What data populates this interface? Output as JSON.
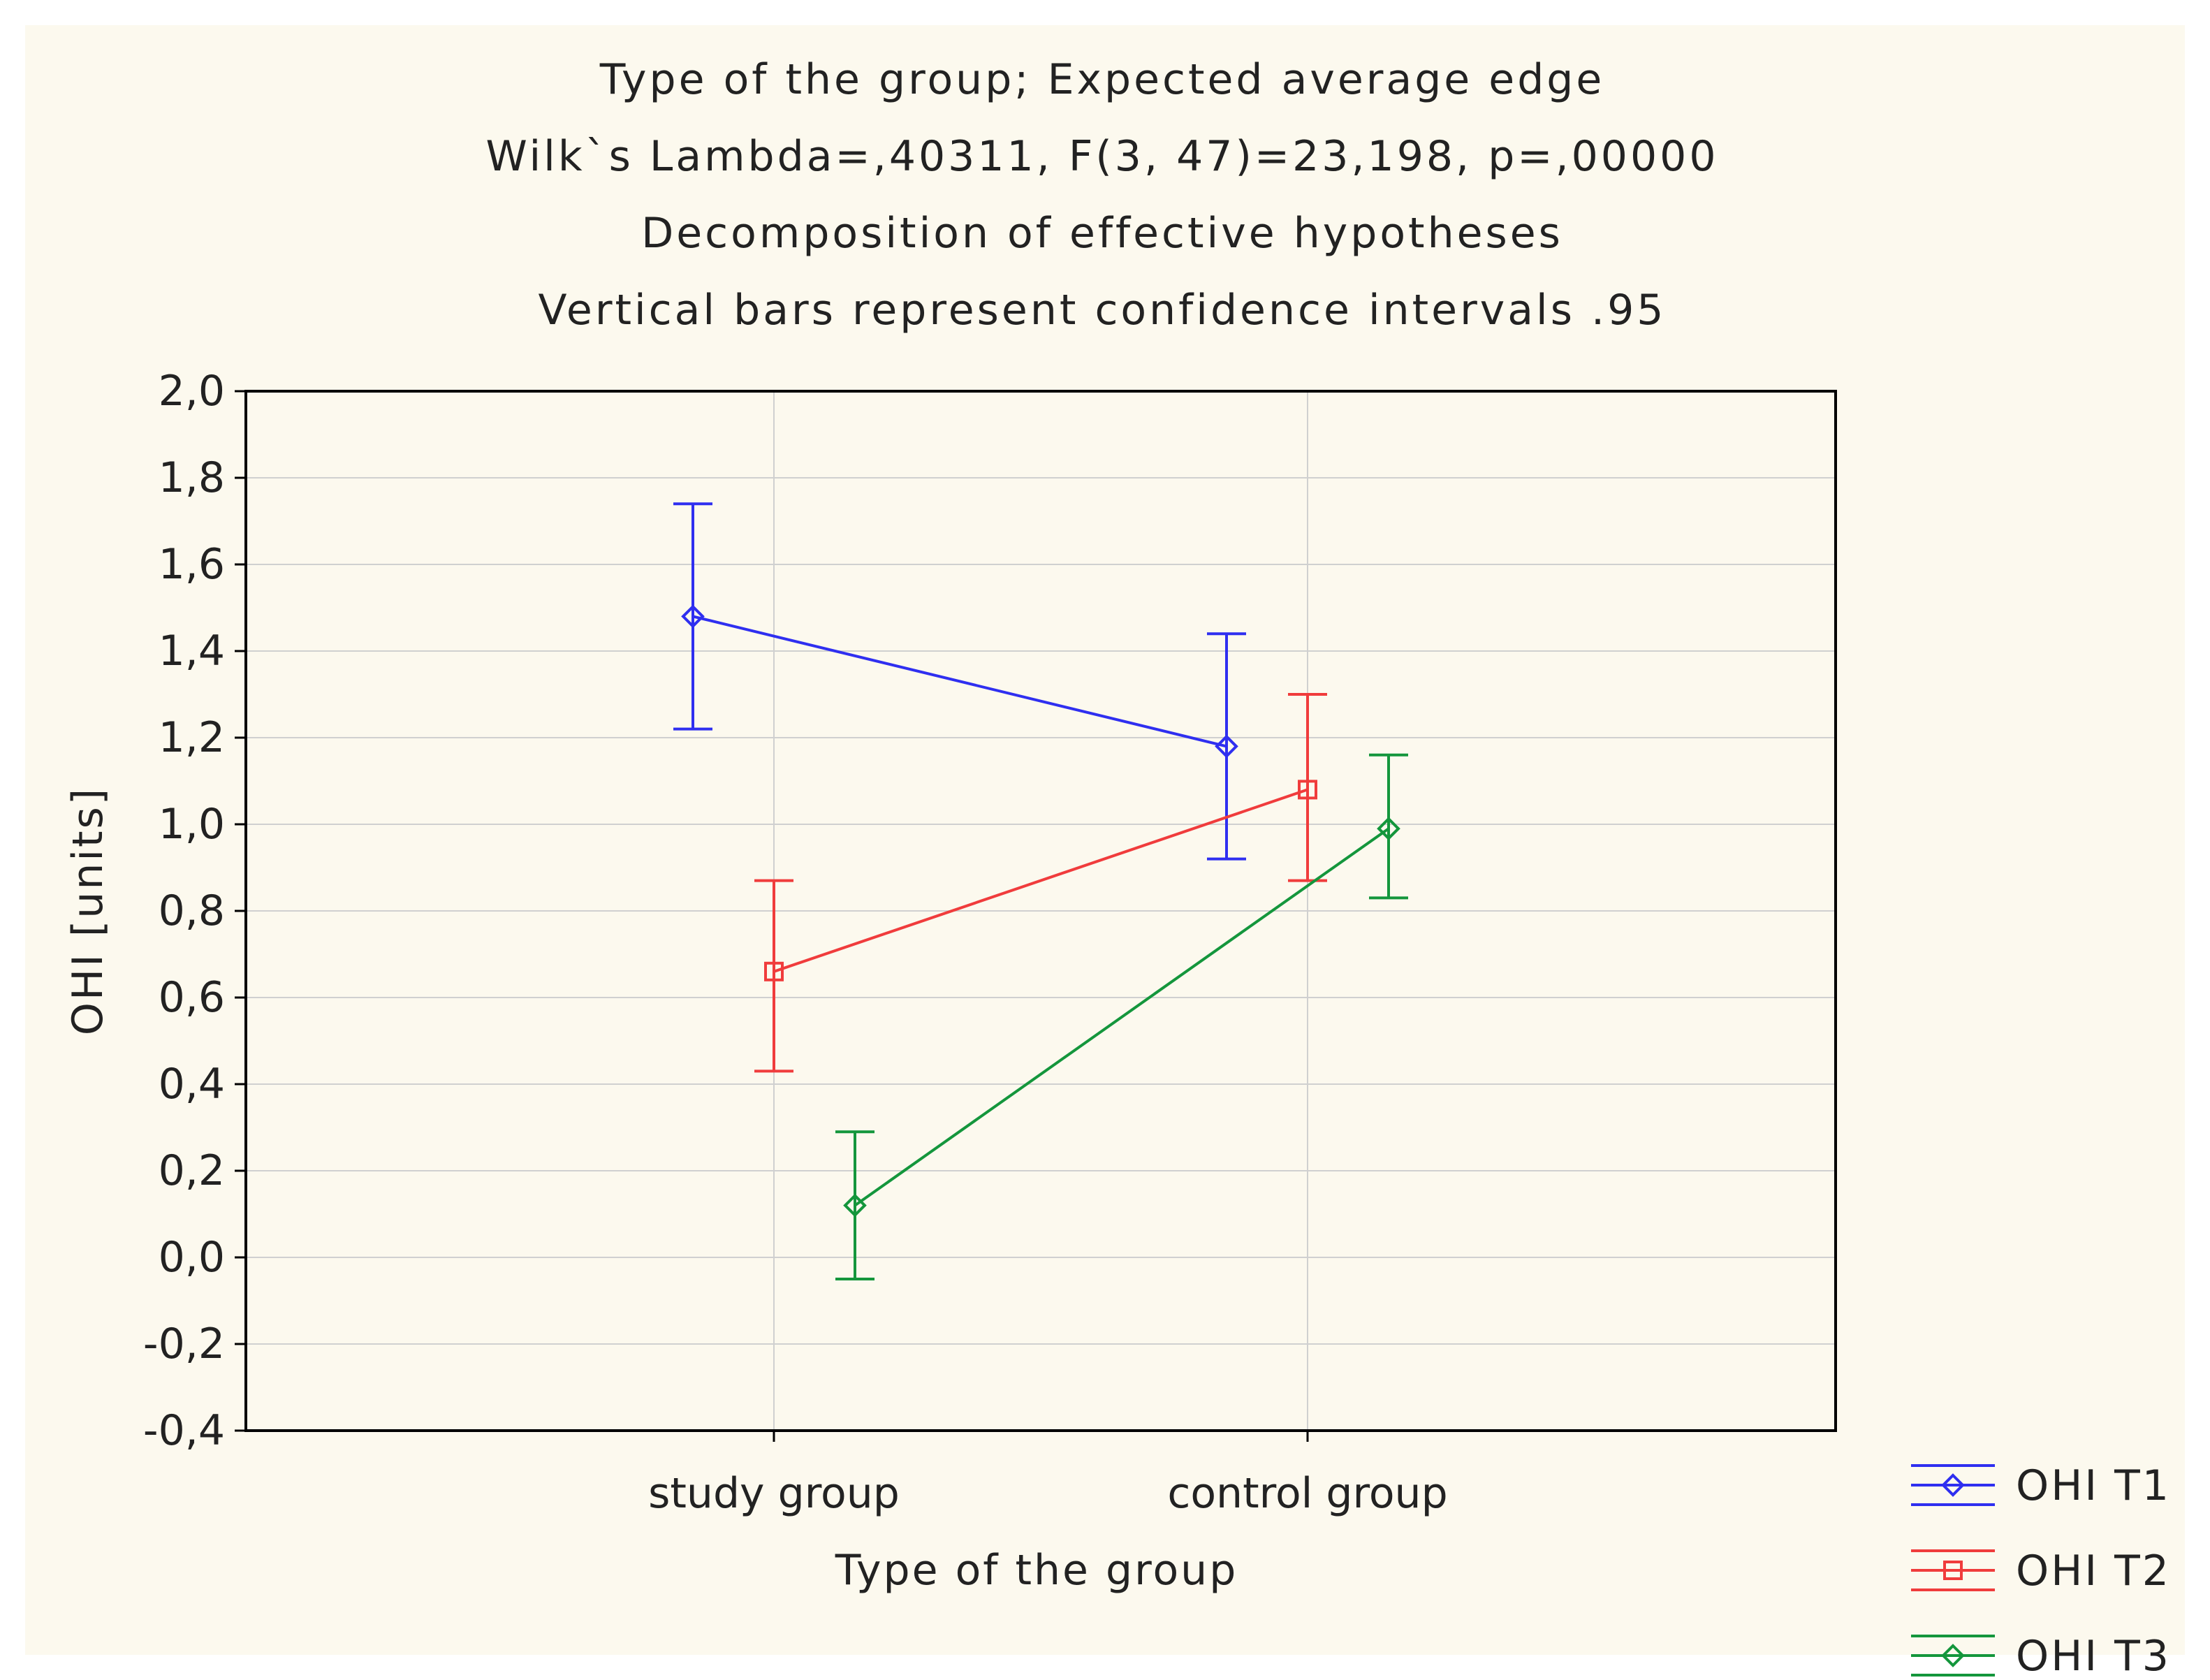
{
  "chart_data": {
    "type": "line",
    "title_lines": [
      "Type of the group; Expected average edge",
      "Wilk`s Lambda=,40311, F(3, 47)=23,198, p=,00000",
      "Decomposition of effective hypotheses",
      "Vertical bars represent confidence intervals .95"
    ],
    "xlabel": "Type of the group",
    "ylabel": "OHI [units]",
    "categories": [
      "study group",
      "control group"
    ],
    "ylim": [
      -0.4,
      2.0
    ],
    "yticks": [
      2.0,
      1.8,
      1.6,
      1.4,
      1.2,
      1.0,
      0.8,
      0.6,
      0.4,
      0.2,
      0.0,
      -0.2,
      -0.4
    ],
    "ytick_labels": [
      "2,0",
      "1,8",
      "1,6",
      "1,4",
      "1,2",
      "1,0",
      "0,8",
      "0,6",
      "0,4",
      "0,2",
      "0,0",
      "-0,2",
      "-0,4"
    ],
    "grid": true,
    "legend_position": "bottom-right outside",
    "series": [
      {
        "name": "OHI T1",
        "color": "#2f2ff0",
        "marker": "diamond",
        "values": [
          1.48,
          1.18
        ],
        "ci_lower": [
          1.22,
          0.92
        ],
        "ci_upper": [
          1.74,
          1.44
        ]
      },
      {
        "name": "OHI T2",
        "color": "#f03c3c",
        "marker": "square",
        "values": [
          0.66,
          1.08
        ],
        "ci_lower": [
          0.43,
          0.87
        ],
        "ci_upper": [
          0.87,
          1.3
        ]
      },
      {
        "name": "OHI T3",
        "color": "#14963c",
        "marker": "diamond",
        "values": [
          0.12,
          0.99
        ],
        "ci_lower": [
          -0.05,
          0.83
        ],
        "ci_upper": [
          0.29,
          1.16
        ]
      }
    ]
  }
}
